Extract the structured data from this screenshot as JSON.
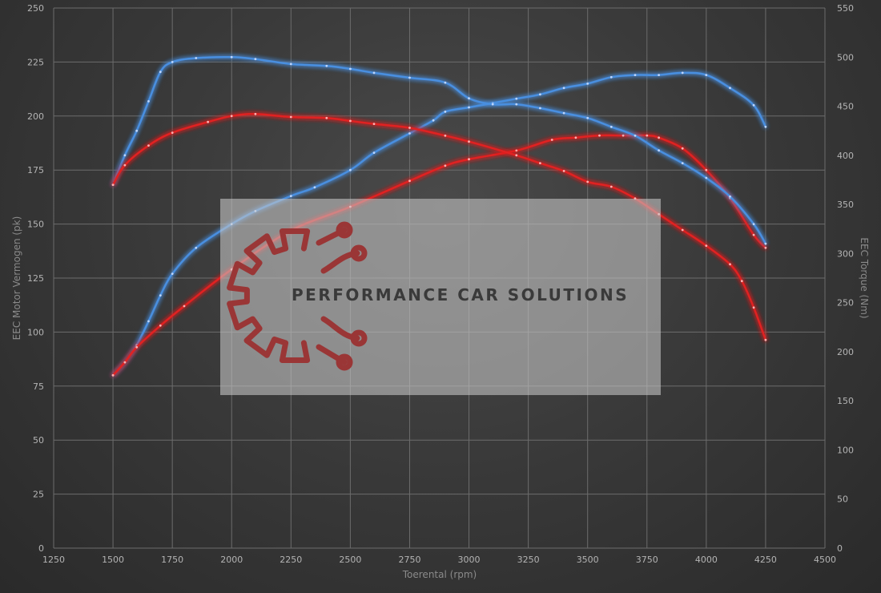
{
  "chart_data": {
    "type": "line",
    "title": "",
    "xlabel": "Toerental (rpm)",
    "ylabel_left": "EEC Motor Vermogen (pk)",
    "ylabel_right": "EEC Torque (Nm)",
    "xlim": [
      1250,
      4500
    ],
    "ylim_left": [
      0,
      250
    ],
    "ylim_right": [
      0,
      550
    ],
    "x_ticks": [
      1250,
      1500,
      1750,
      2000,
      2250,
      2500,
      2750,
      3000,
      3250,
      3500,
      3750,
      4000,
      4250,
      4500
    ],
    "y_left_ticks": [
      0,
      25,
      50,
      75,
      100,
      125,
      150,
      175,
      200,
      225,
      250
    ],
    "y_right_ticks": [
      0,
      50,
      100,
      150,
      200,
      250,
      300,
      350,
      400,
      450,
      500,
      550
    ],
    "grid": true,
    "series": [
      {
        "axis": "left",
        "color": "#4a8fe0",
        "x": [
          1500,
          1550,
          1600,
          1650,
          1700,
          1750,
          1850,
          2000,
          2100,
          2250,
          2350,
          2500,
          2600,
          2750,
          2850,
          2900,
          3000,
          3100,
          3200,
          3300,
          3400,
          3500,
          3600,
          3700,
          3800,
          3900,
          4000,
          4100,
          4200,
          4250
        ],
        "y": [
          80,
          86,
          94,
          105,
          117,
          127,
          139,
          150,
          156,
          163,
          167,
          175,
          183,
          192,
          198,
          202,
          204,
          206,
          208,
          210,
          213,
          215,
          218,
          219,
          219,
          220,
          219,
          213,
          205,
          195
        ]
      },
      {
        "axis": "left",
        "color": "#e02020",
        "x": [
          1500,
          1550,
          1600,
          1700,
          1800,
          2000,
          2250,
          2500,
          2750,
          2900,
          3000,
          3200,
          3350,
          3450,
          3550,
          3650,
          3750,
          3800,
          3900,
          4000,
          4100,
          4200,
          4250
        ],
        "y": [
          80,
          86,
          93,
          103,
          112,
          129,
          147,
          158,
          170,
          177,
          180,
          184,
          189,
          190,
          191,
          191,
          191,
          190,
          185,
          175,
          162,
          145,
          139
        ]
      },
      {
        "axis": "right",
        "color": "#4a8fe0",
        "x": [
          1500,
          1550,
          1600,
          1650,
          1700,
          1750,
          1850,
          2000,
          2100,
          2250,
          2400,
          2500,
          2600,
          2750,
          2900,
          3000,
          3100,
          3200,
          3300,
          3400,
          3500,
          3600,
          3700,
          3800,
          3900,
          4000,
          4100,
          4200,
          4250
        ],
        "y": [
          370,
          400,
          425,
          455,
          485,
          495,
          499,
          500,
          498,
          493,
          491,
          488,
          484,
          479,
          474,
          458,
          452,
          452,
          448,
          443,
          438,
          429,
          420,
          405,
          392,
          377,
          358,
          330,
          310
        ]
      },
      {
        "axis": "right",
        "color": "#e02020",
        "x": [
          1500,
          1550,
          1650,
          1750,
          1900,
          2000,
          2100,
          2250,
          2400,
          2500,
          2600,
          2750,
          2900,
          3000,
          3200,
          3300,
          3400,
          3500,
          3600,
          3700,
          3800,
          3900,
          4000,
          4100,
          4150,
          4200,
          4250
        ],
        "y": [
          370,
          390,
          410,
          423,
          434,
          440,
          442,
          439,
          438,
          435,
          432,
          428,
          420,
          414,
          400,
          392,
          384,
          373,
          368,
          356,
          340,
          324,
          308,
          289,
          272,
          245,
          212
        ]
      }
    ]
  },
  "watermark": {
    "text": "PERFORMANCE CAR SOLUTIONS",
    "logo_icon": "gear-circuit-icon",
    "logo_color": "#9a3636"
  }
}
